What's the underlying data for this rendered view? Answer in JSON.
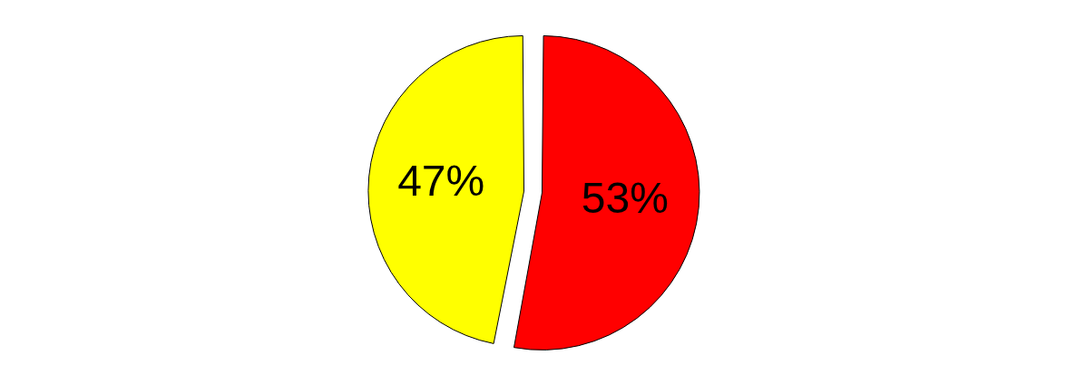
{
  "chart_data": {
    "type": "pie",
    "categories": [
      null,
      null
    ],
    "values": [
      53,
      47
    ],
    "colors": [
      "#ff0000",
      "#ffff00"
    ],
    "value_labels": [
      "53%",
      "47%"
    ],
    "legend": false
  }
}
